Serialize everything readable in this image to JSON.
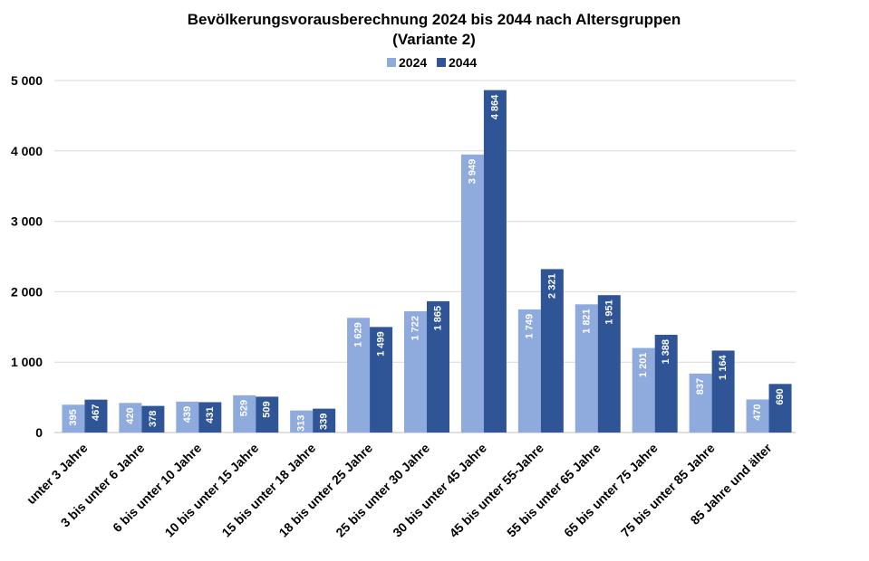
{
  "chart_data": {
    "type": "bar",
    "title_lines": [
      "Bevölkerungsvorausberechnung 2024 bis 2044 nach Altersgruppen",
      "(Variante 2)"
    ],
    "categories": [
      "unter 3 Jahre",
      "3 bis unter 6 Jahre",
      "6 bis unter 10 Jahre",
      "10 bis unter 15 Jahre",
      "15 bis unter 18 Jahre",
      "18 bis unter 25 Jahre",
      "25 bis unter 30 Jahre",
      "30 bis unter 45 Jahre",
      "45 bis unter 55-Jahre",
      "55 bis unter 65 Jahre",
      "65 bis unter 75 Jahre",
      "75 bis unter 85 Jahre",
      "85 Jahre und älter"
    ],
    "series": [
      {
        "name": "2024",
        "color": "#8faadc",
        "values": [
          395,
          420,
          439,
          529,
          313,
          1629,
          1722,
          3949,
          1749,
          1821,
          1201,
          837,
          470
        ],
        "labels": [
          "395",
          "420",
          "439",
          "529",
          "313",
          "1 629",
          "1 722",
          "3 949",
          "1 749",
          "1 821",
          "1 201",
          "837",
          "470"
        ]
      },
      {
        "name": "2044",
        "color": "#2f5597",
        "values": [
          467,
          378,
          431,
          509,
          339,
          1499,
          1865,
          4864,
          2321,
          1951,
          1388,
          1164,
          690
        ],
        "labels": [
          "467",
          "378",
          "431",
          "509",
          "339",
          "1 499",
          "1 865",
          "4 864",
          "2 321",
          "1 951",
          "1 388",
          "1 164",
          "690"
        ]
      }
    ],
    "ylim": [
      0,
      5000
    ],
    "yticks": [
      0,
      1000,
      2000,
      3000,
      4000,
      5000
    ],
    "ytick_labels": [
      "0",
      "1 000",
      "2 000",
      "3 000",
      "4 000",
      "5 000"
    ],
    "xlabel": "",
    "ylabel": "",
    "grid": true,
    "legend_position": "top-center"
  }
}
